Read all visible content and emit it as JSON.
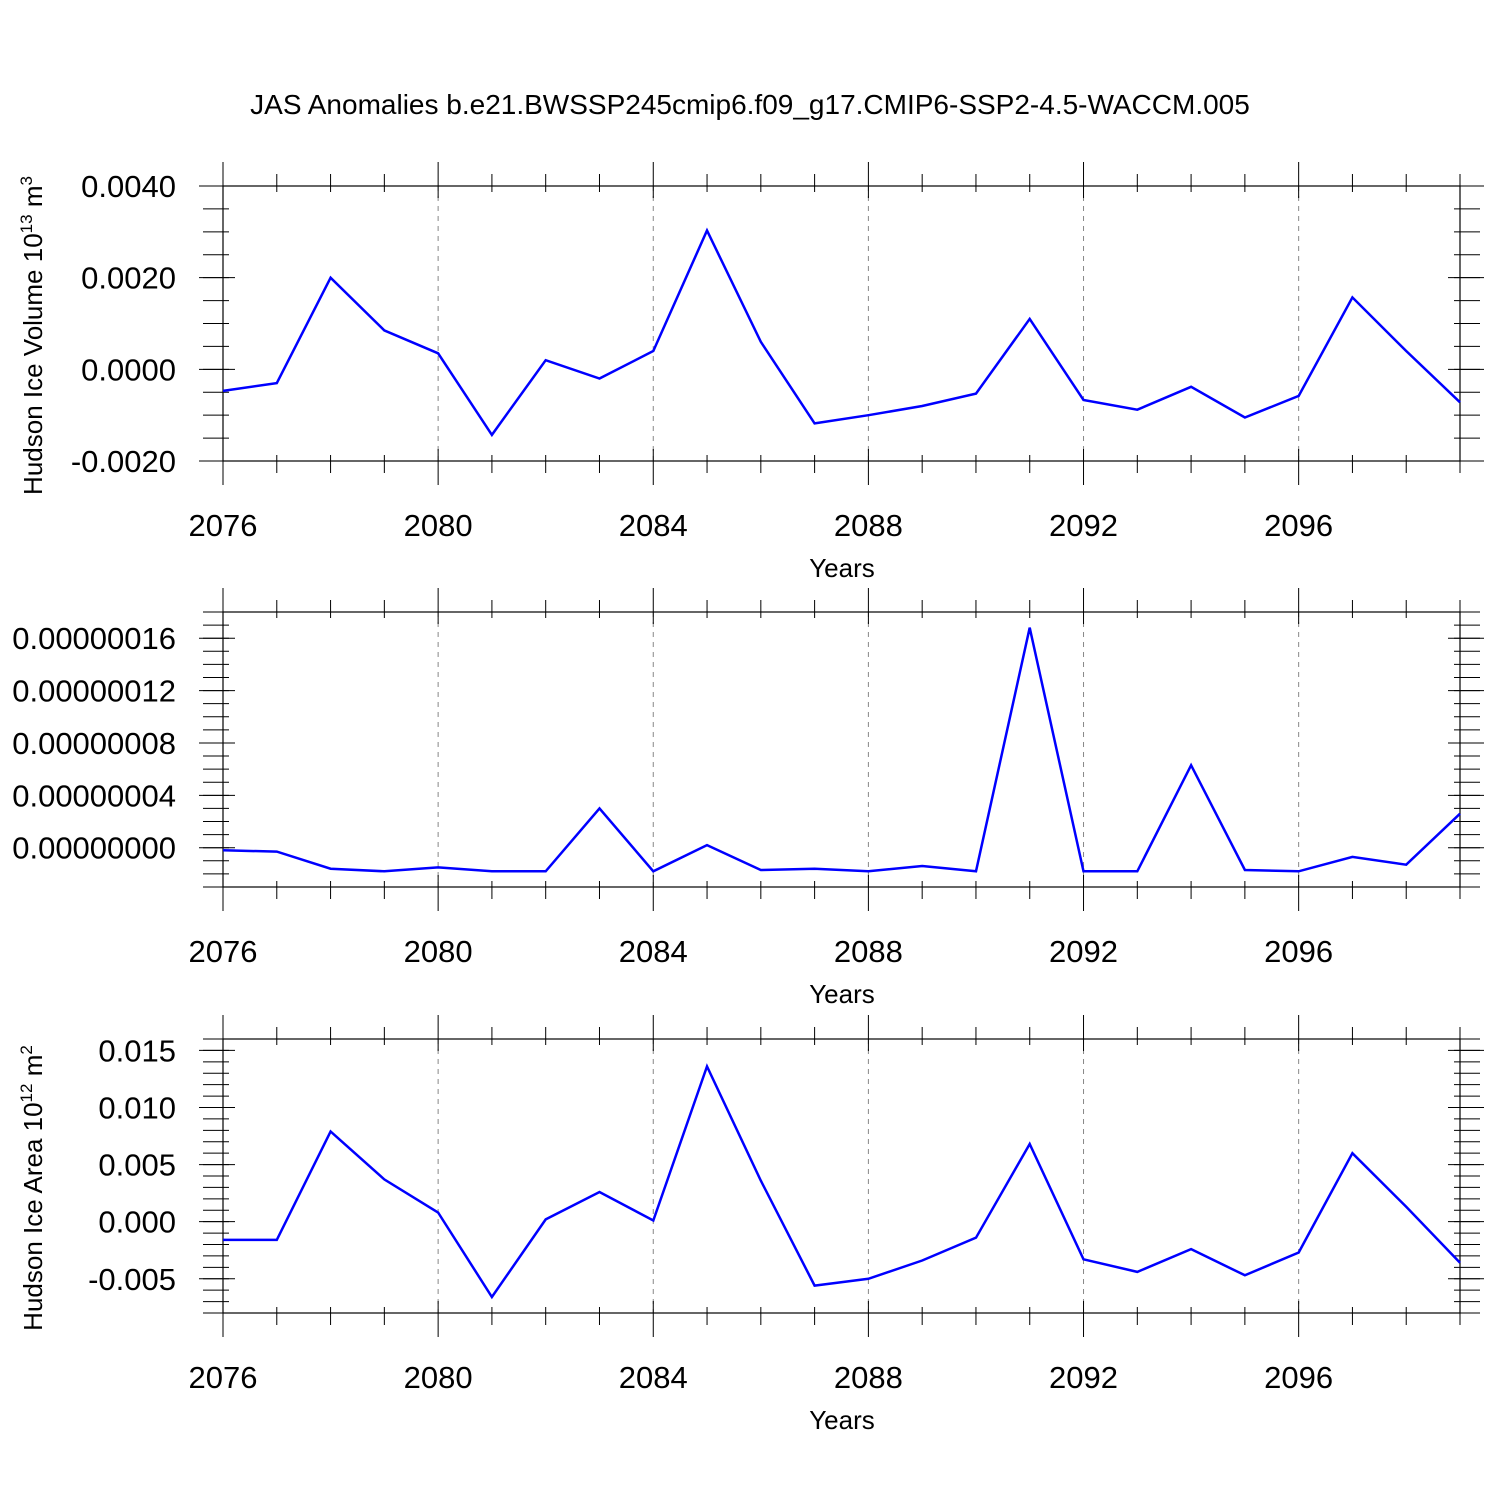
{
  "title": "JAS Anomalies b.e21.BWSSP245cmip6.f09_g17.CMIP6-SSP2-4.5-WACCM.005",
  "line_color": "#0000ff",
  "chart_data": [
    {
      "type": "line",
      "title": "",
      "xlabel": "Years",
      "ylabel": "Hudson Ice Volume 10",
      "ylabel_exp": "13",
      "ylabel_unit": " m",
      "ylabel_unit_exp": "3",
      "xlim": [
        2076,
        2099
      ],
      "ylim": [
        -0.002,
        0.004
      ],
      "xticks": [
        2076,
        2080,
        2084,
        2088,
        2092,
        2096
      ],
      "xtick_labels": [
        "2076",
        "2080",
        "2084",
        "2088",
        "2092",
        "2096"
      ],
      "yticks": [
        -0.002,
        0.0,
        0.002,
        0.004
      ],
      "ytick_labels": [
        "-0.0020",
        "0.0000",
        "0.0020",
        "0.0040"
      ],
      "y_minor_step": 0.0005,
      "grid": "vertical-dashed",
      "series": [
        {
          "x": [
            2076,
            2077,
            2078,
            2079,
            2080,
            2081,
            2082,
            2083,
            2084,
            2085,
            2086,
            2087,
            2088,
            2089,
            2090,
            2091,
            2092,
            2093,
            2094,
            2095,
            2096,
            2097,
            2098,
            2099
          ],
          "values": [
            -0.00047,
            -0.0003,
            0.002,
            0.00085,
            0.00035,
            -0.00143,
            0.0002,
            -0.0002,
            0.0004,
            0.00303,
            0.0006,
            -0.00118,
            -0.001,
            -0.0008,
            -0.00053,
            0.0011,
            -0.00067,
            -0.00088,
            -0.00038,
            -0.00105,
            -0.00058,
            0.00157,
            0.0004,
            -0.00072
          ]
        }
      ]
    },
    {
      "type": "line",
      "title": "",
      "xlabel": "Years",
      "ylabel": "",
      "xlim": [
        2076,
        2099
      ],
      "ylim": [
        -3e-08,
        1.8e-07
      ],
      "xticks": [
        2076,
        2080,
        2084,
        2088,
        2092,
        2096
      ],
      "xtick_labels": [
        "2076",
        "2080",
        "2084",
        "2088",
        "2092",
        "2096"
      ],
      "yticks": [
        0.0,
        4e-08,
        8e-08,
        1.2e-07,
        1.6e-07
      ],
      "ytick_labels": [
        "0.00000000",
        "0.00000004",
        "0.00000008",
        "0.00000012",
        "0.00000016"
      ],
      "y_minor_step": 1e-08,
      "grid": "vertical-dashed",
      "series": [
        {
          "x": [
            2076,
            2077,
            2078,
            2079,
            2080,
            2081,
            2082,
            2083,
            2084,
            2085,
            2086,
            2087,
            2088,
            2089,
            2090,
            2091,
            2092,
            2093,
            2094,
            2095,
            2096,
            2097,
            2098,
            2099
          ],
          "values": [
            -2e-09,
            -3e-09,
            -1.6e-08,
            -1.8e-08,
            -1.5e-08,
            -1.8e-08,
            -1.8e-08,
            3e-08,
            -1.8e-08,
            2e-09,
            -1.7e-08,
            -1.6e-08,
            -1.8e-08,
            -1.4e-08,
            -1.8e-08,
            1.68e-07,
            -1.8e-08,
            -1.8e-08,
            6.3e-08,
            -1.7e-08,
            -1.8e-08,
            -7e-09,
            -1.3e-08,
            2.6e-08
          ]
        }
      ]
    },
    {
      "type": "line",
      "title": "",
      "xlabel": "Years",
      "ylabel": "Hudson Ice Area 10",
      "ylabel_exp": "12",
      "ylabel_unit": " m",
      "ylabel_unit_exp": "2",
      "xlim": [
        2076,
        2099
      ],
      "ylim": [
        -0.008,
        0.016
      ],
      "xticks": [
        2076,
        2080,
        2084,
        2088,
        2092,
        2096
      ],
      "xtick_labels": [
        "2076",
        "2080",
        "2084",
        "2088",
        "2092",
        "2096"
      ],
      "yticks": [
        -0.005,
        0.0,
        0.005,
        0.01,
        0.015
      ],
      "ytick_labels": [
        "-0.005",
        "0.000",
        "0.005",
        "0.010",
        "0.015"
      ],
      "y_minor_step": 0.001,
      "grid": "vertical-dashed",
      "series": [
        {
          "x": [
            2076,
            2077,
            2078,
            2079,
            2080,
            2081,
            2082,
            2083,
            2084,
            2085,
            2086,
            2087,
            2088,
            2089,
            2090,
            2091,
            2092,
            2093,
            2094,
            2095,
            2096,
            2097,
            2098,
            2099
          ],
          "values": [
            -0.0016,
            -0.0016,
            0.0079,
            0.0037,
            0.0008,
            -0.0066,
            0.0002,
            0.0026,
            0.0001,
            0.0136,
            0.0036,
            -0.0056,
            -0.005,
            -0.0034,
            -0.0014,
            0.0068,
            -0.0033,
            -0.0044,
            -0.0024,
            -0.0047,
            -0.0027,
            0.006,
            0.0013,
            -0.0036
          ]
        }
      ]
    }
  ]
}
